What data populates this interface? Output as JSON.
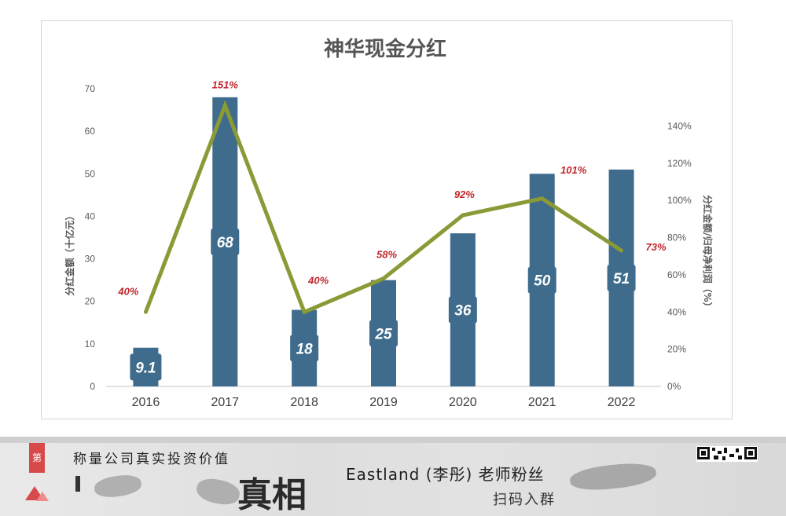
{
  "chart_data": {
    "type": "bar+line",
    "title": "神华现金分红",
    "categories": [
      "2016",
      "2017",
      "2018",
      "2019",
      "2020",
      "2021",
      "2022"
    ],
    "series": [
      {
        "name": "分红金额",
        "type": "bar",
        "axis": "left",
        "values": [
          9.1,
          68,
          18,
          25,
          36,
          50,
          51
        ],
        "labels": [
          "9.1",
          "68",
          "18",
          "25",
          "36",
          "50",
          "51"
        ],
        "color": "#3f6b8c"
      },
      {
        "name": "分红金额/归母净利润",
        "type": "line",
        "axis": "right",
        "values": [
          40,
          151,
          40,
          58,
          92,
          101,
          73
        ],
        "labels": [
          "40%",
          "151%",
          "40%",
          "58%",
          "92%",
          "101%",
          "73%"
        ],
        "color": "#8a9a36"
      }
    ],
    "ylabel_left": "分红金额（十亿元）",
    "ylabel_right": "分红金额/归母净利润（%）",
    "ylim_left": [
      0,
      70
    ],
    "yticks_left": [
      "0",
      "10",
      "20",
      "30",
      "40",
      "50",
      "60",
      "70"
    ],
    "ylim_right": [
      0,
      160
    ],
    "yticks_right": [
      "0%",
      "20%",
      "40%",
      "60%",
      "80%",
      "100%",
      "120%",
      "140%"
    ],
    "pct_label_color": "#c0272d",
    "grid": false,
    "legend": "none"
  },
  "banner": {
    "tab_char": "第",
    "slogan": "称量公司真实投资价值",
    "big_title": "真相",
    "fan_text": "Eastland (李彤) 老师粉丝",
    "scan_text": "扫码入群"
  }
}
